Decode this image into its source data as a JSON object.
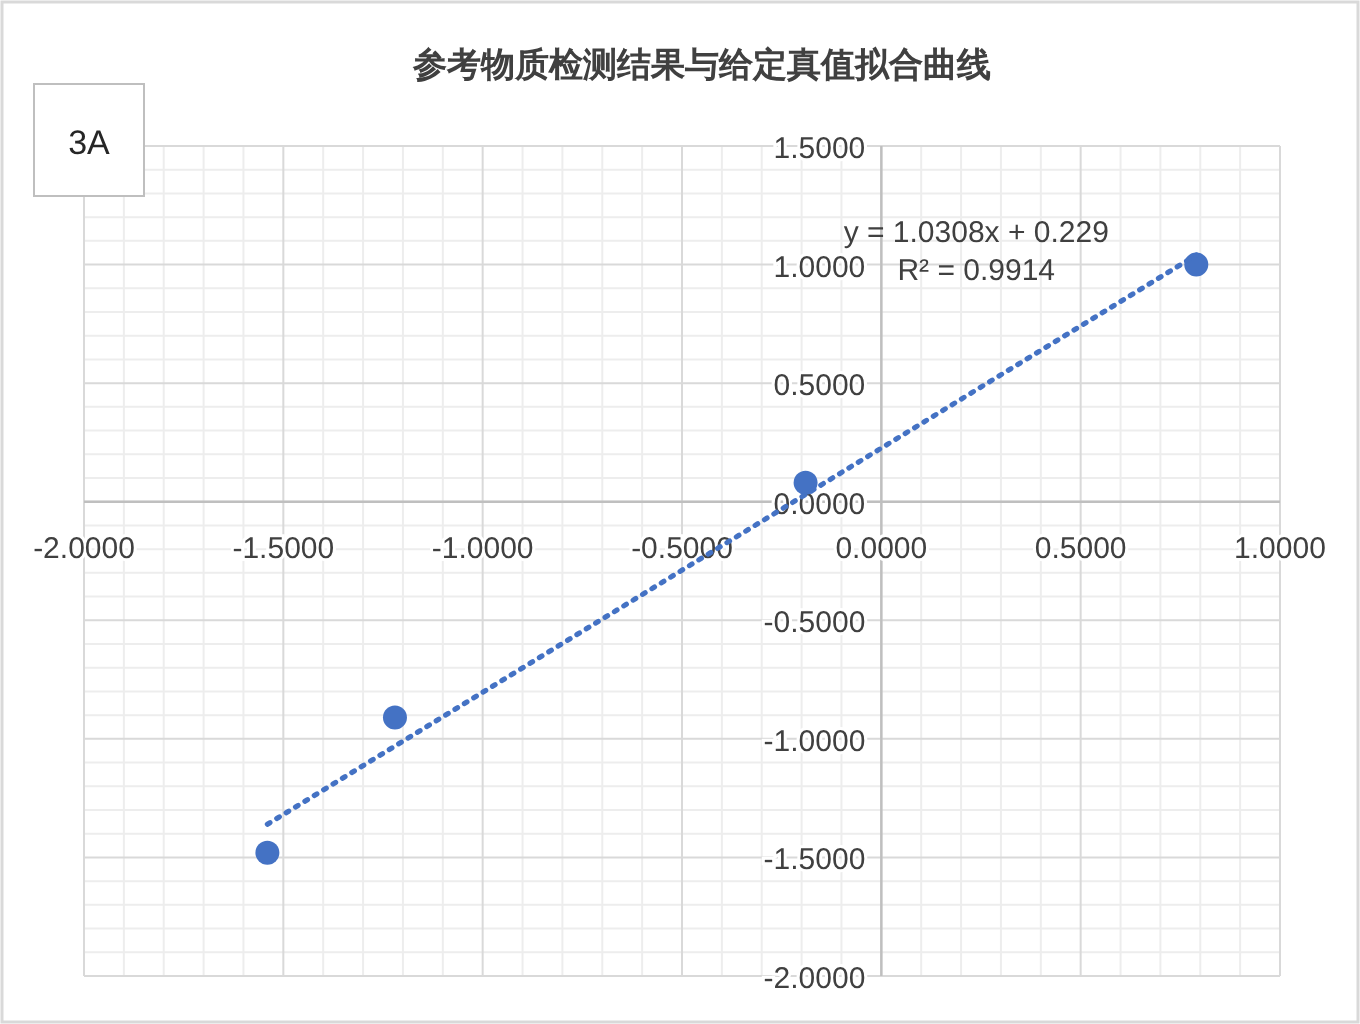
{
  "chart_data": {
    "type": "scatter",
    "title": "参考物质检测结果与给定真值拟合曲线",
    "annotations": [
      "3A",
      "y = 1.0308x + 0.229",
      "R² = 0.9914"
    ],
    "series": [
      {
        "color": "#4472c4",
        "marker": "circle",
        "x": [
          -1.54,
          -1.22,
          -0.19,
          0.79
        ],
        "values": [
          -1.48,
          -0.91,
          0.08,
          1.0
        ]
      },
      {
        "type": "line",
        "color": "#4472c4",
        "line_style": "dotted",
        "x": [
          -1.54,
          0.79
        ],
        "values": [
          -1.36,
          1.04
        ]
      }
    ],
    "xlim": [
      -2,
      1
    ],
    "ylim": [
      -2,
      1.5
    ],
    "xticks": [
      {
        "value": -2,
        "label": "-2.0000"
      },
      {
        "value": -1.5,
        "label": "-1.5000"
      },
      {
        "value": -1,
        "label": "-1.0000"
      },
      {
        "value": -0.5,
        "label": "-0.5000"
      },
      {
        "value": 0,
        "label": "0.0000"
      },
      {
        "value": 0.5,
        "label": "0.5000"
      },
      {
        "value": 1,
        "label": "1.0000"
      }
    ],
    "yticks": [
      {
        "value": -2,
        "label": "-2.0000"
      },
      {
        "value": -1.5,
        "label": "-1.5000"
      },
      {
        "value": -1,
        "label": "-1.0000"
      },
      {
        "value": -0.5,
        "label": "-0.5000"
      },
      {
        "value": 0,
        "label": "0.0000"
      },
      {
        "value": 0.5,
        "label": "0.5000"
      },
      {
        "value": 1,
        "label": "1.0000"
      },
      {
        "value": 1.5,
        "label": "1.5000"
      }
    ],
    "grid": true
  }
}
